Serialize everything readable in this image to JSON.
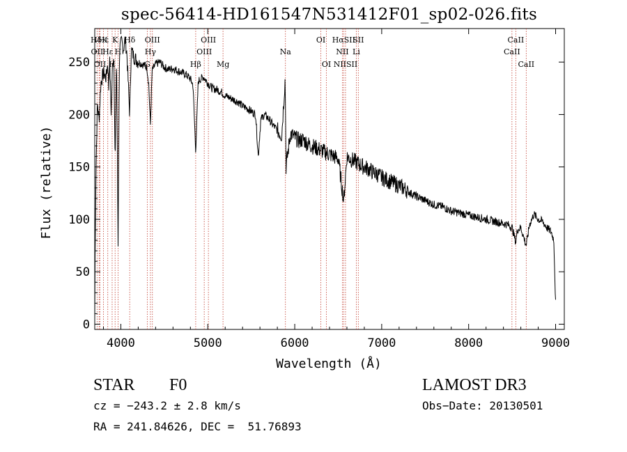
{
  "header": {
    "title": "spec-56414-HD161547N531412F01_sp02-026.fits"
  },
  "chart_data": {
    "type": "line",
    "title": "spec-56414-HD161547N531412F01_sp02-026.fits",
    "xlabel": "Wavelength (Å)",
    "ylabel": "Flux (relative)",
    "xlim": [
      3700,
      9100
    ],
    "ylim": [
      -5,
      282
    ],
    "xticks": [
      4000,
      5000,
      6000,
      7000,
      8000,
      9000
    ],
    "yticks": [
      0,
      50,
      100,
      150,
      200,
      250
    ],
    "series": [
      {
        "name": "spectrum",
        "anchors": [
          [
            3700,
            5
          ],
          [
            3705,
            80
          ],
          [
            3715,
            150
          ],
          [
            3730,
            210
          ],
          [
            3750,
            195
          ],
          [
            3770,
            230
          ],
          [
            3800,
            240
          ],
          [
            3830,
            235
          ],
          [
            3850,
            250
          ],
          [
            3860,
            225
          ],
          [
            3870,
            255
          ],
          [
            3889,
            200
          ],
          [
            3905,
            250
          ],
          [
            3920,
            255
          ],
          [
            3934,
            150
          ],
          [
            3950,
            258
          ],
          [
            3968,
            75
          ],
          [
            3985,
            262
          ],
          [
            4010,
            270
          ],
          [
            4030,
            262
          ],
          [
            4050,
            272
          ],
          [
            4070,
            258
          ],
          [
            4102,
            200
          ],
          [
            4120,
            262
          ],
          [
            4150,
            255
          ],
          [
            4200,
            250
          ],
          [
            4250,
            248
          ],
          [
            4300,
            245
          ],
          [
            4320,
            230
          ],
          [
            4340,
            190
          ],
          [
            4360,
            242
          ],
          [
            4400,
            248
          ],
          [
            4450,
            250
          ],
          [
            4500,
            245
          ],
          [
            4550,
            243
          ],
          [
            4600,
            244
          ],
          [
            4650,
            242
          ],
          [
            4700,
            240
          ],
          [
            4750,
            238
          ],
          [
            4800,
            234
          ],
          [
            4830,
            228
          ],
          [
            4861,
            165
          ],
          [
            4890,
            232
          ],
          [
            4920,
            234
          ],
          [
            4950,
            236
          ],
          [
            5000,
            230
          ],
          [
            5050,
            225
          ],
          [
            5100,
            224
          ],
          [
            5150,
            222
          ],
          [
            5200,
            218
          ],
          [
            5250,
            216
          ],
          [
            5300,
            214
          ],
          [
            5350,
            212
          ],
          [
            5400,
            208
          ],
          [
            5450,
            206
          ],
          [
            5500,
            203
          ],
          [
            5550,
            200
          ],
          [
            5580,
            160
          ],
          [
            5610,
            195
          ],
          [
            5650,
            200
          ],
          [
            5700,
            196
          ],
          [
            5750,
            190
          ],
          [
            5800,
            185
          ],
          [
            5850,
            180
          ],
          [
            5890,
            235
          ],
          [
            5900,
            150
          ],
          [
            5950,
            182
          ],
          [
            6000,
            178
          ],
          [
            6050,
            175
          ],
          [
            6100,
            176
          ],
          [
            6150,
            172
          ],
          [
            6200,
            170
          ],
          [
            6250,
            168
          ],
          [
            6300,
            166
          ],
          [
            6350,
            164
          ],
          [
            6400,
            162
          ],
          [
            6450,
            160
          ],
          [
            6500,
            158
          ],
          [
            6563,
            118
          ],
          [
            6600,
            160
          ],
          [
            6650,
            157
          ],
          [
            6700,
            155
          ],
          [
            6750,
            152
          ],
          [
            6800,
            150
          ],
          [
            6850,
            148
          ],
          [
            6900,
            145
          ],
          [
            6950,
            143
          ],
          [
            7000,
            140
          ],
          [
            7050,
            138
          ],
          [
            7100,
            136
          ],
          [
            7150,
            134
          ],
          [
            7200,
            132
          ],
          [
            7250,
            130
          ],
          [
            7300,
            127
          ],
          [
            7350,
            124
          ],
          [
            7400,
            122
          ],
          [
            7450,
            120
          ],
          [
            7500,
            118
          ],
          [
            7550,
            116
          ],
          [
            7600,
            114
          ],
          [
            7650,
            113
          ],
          [
            7700,
            112
          ],
          [
            7750,
            110
          ],
          [
            7800,
            108
          ],
          [
            7850,
            107
          ],
          [
            7900,
            106
          ],
          [
            7950,
            105
          ],
          [
            8000,
            104
          ],
          [
            8050,
            103
          ],
          [
            8100,
            102
          ],
          [
            8150,
            101
          ],
          [
            8200,
            100
          ],
          [
            8250,
            99
          ],
          [
            8300,
            98
          ],
          [
            8350,
            97
          ],
          [
            8400,
            96
          ],
          [
            8450,
            95
          ],
          [
            8500,
            92
          ],
          [
            8542,
            78
          ],
          [
            8560,
            90
          ],
          [
            8600,
            92
          ],
          [
            8662,
            75
          ],
          [
            8700,
            95
          ],
          [
            8750,
            105
          ],
          [
            8800,
            100
          ],
          [
            8850,
            98
          ],
          [
            8900,
            92
          ],
          [
            8950,
            88
          ],
          [
            8980,
            80
          ],
          [
            9000,
            20
          ]
        ]
      }
    ],
    "lines": [
      {
        "label": "HδK",
        "x": 3750,
        "row": 1
      },
      {
        "label": "Hε",
        "x": 3800,
        "row": 1
      },
      {
        "label": "K",
        "x": 3934,
        "row": 1
      },
      {
        "label": "Hδ",
        "x": 4102,
        "row": 1
      },
      {
        "label": "OII",
        "x": 3727,
        "row": 2
      },
      {
        "label": "Hε",
        "x": 3850,
        "row": 2
      },
      {
        "label": "H",
        "x": 3968,
        "row": 2
      },
      {
        "label": "OII",
        "x": 3760,
        "row": 3
      },
      {
        "label": "H",
        "x": 3900,
        "row": 3
      },
      {
        "label": "OIII",
        "x": 4363,
        "row": 1
      },
      {
        "label": "Hγ",
        "x": 4340,
        "row": 2
      },
      {
        "label": "G",
        "x": 4304,
        "row": 3
      },
      {
        "label": "OIII",
        "x": 5007,
        "row": 1
      },
      {
        "label": "OIII",
        "x": 4959,
        "row": 2
      },
      {
        "label": "Hβ",
        "x": 4861,
        "row": 3
      },
      {
        "label": "Mg",
        "x": 5175,
        "row": 3
      },
      {
        "label": "Na",
        "x": 5893,
        "row": 2
      },
      {
        "label": "OI",
        "x": 6300,
        "row": 1
      },
      {
        "label": "OI",
        "x": 6364,
        "row": 3
      },
      {
        "label": "HαSII",
        "x": 6563,
        "row": 1
      },
      {
        "label": "NII",
        "x": 6548,
        "row": 2
      },
      {
        "label": "Li",
        "x": 6708,
        "row": 2
      },
      {
        "label": "NIISII",
        "x": 6584,
        "row": 3
      },
      {
        "label": "SII",
        "x": 6731,
        "row": 1
      },
      {
        "label": "CaII",
        "x": 8542,
        "row": 1
      },
      {
        "label": "CaII",
        "x": 8498,
        "row": 2
      },
      {
        "label": "CaII",
        "x": 8662,
        "row": 3
      }
    ]
  },
  "info": {
    "class_label": "STAR",
    "subclass": "F0",
    "survey": "LAMOST DR3",
    "cz": "cz = −243.2 ± 2.8 km/s",
    "obs_date": "Obs−Date: 20130501",
    "coords": "RA = 241.84626, DEC =  51.76893"
  }
}
